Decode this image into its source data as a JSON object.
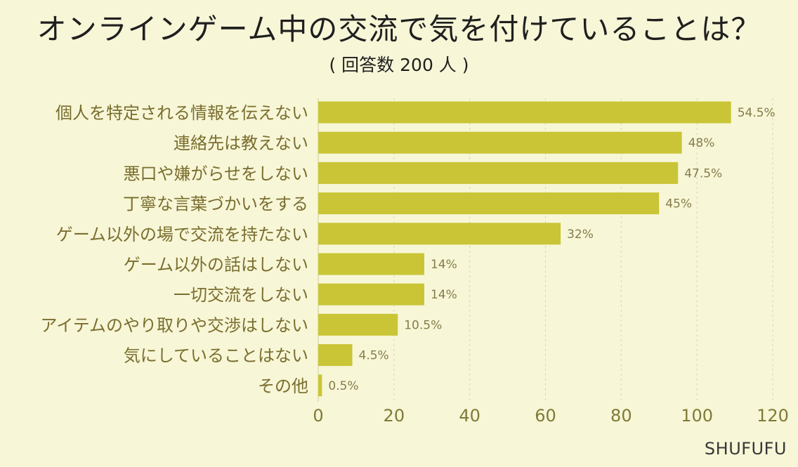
{
  "chart_data": {
    "type": "bar",
    "orientation": "horizontal",
    "title": "オンラインゲーム中の交流で気を付けていることは？",
    "subtitle": "( 回答数 200 人 )",
    "categories": [
      "個人を特定される情報を伝えない",
      "連絡先は教えない",
      "悪口や嫌がらせをしない",
      "丁寧な言葉づかいをする",
      "ゲーム以外の場で交流を持たない",
      "ゲーム以外の話はしない",
      "一切交流をしない",
      "アイテムのやり取りや交渉はしない",
      "気にしていることはない",
      "その他"
    ],
    "values": [
      109,
      96,
      95,
      90,
      64,
      28,
      28,
      21,
      9,
      1
    ],
    "value_labels": [
      "54.5%",
      "48%",
      "47.5%",
      "45%",
      "32%",
      "14%",
      "14%",
      "10.5%",
      "4.5%",
      "0.5%"
    ],
    "xlim": [
      0,
      120
    ],
    "xticks": [
      0,
      20,
      40,
      60,
      80,
      100,
      120
    ],
    "xlabel": "",
    "ylabel": "",
    "grid": "vertical dashed",
    "bar_color": "#c9c536",
    "background": "#f7f6d7"
  },
  "brand": "SHUFUFU"
}
